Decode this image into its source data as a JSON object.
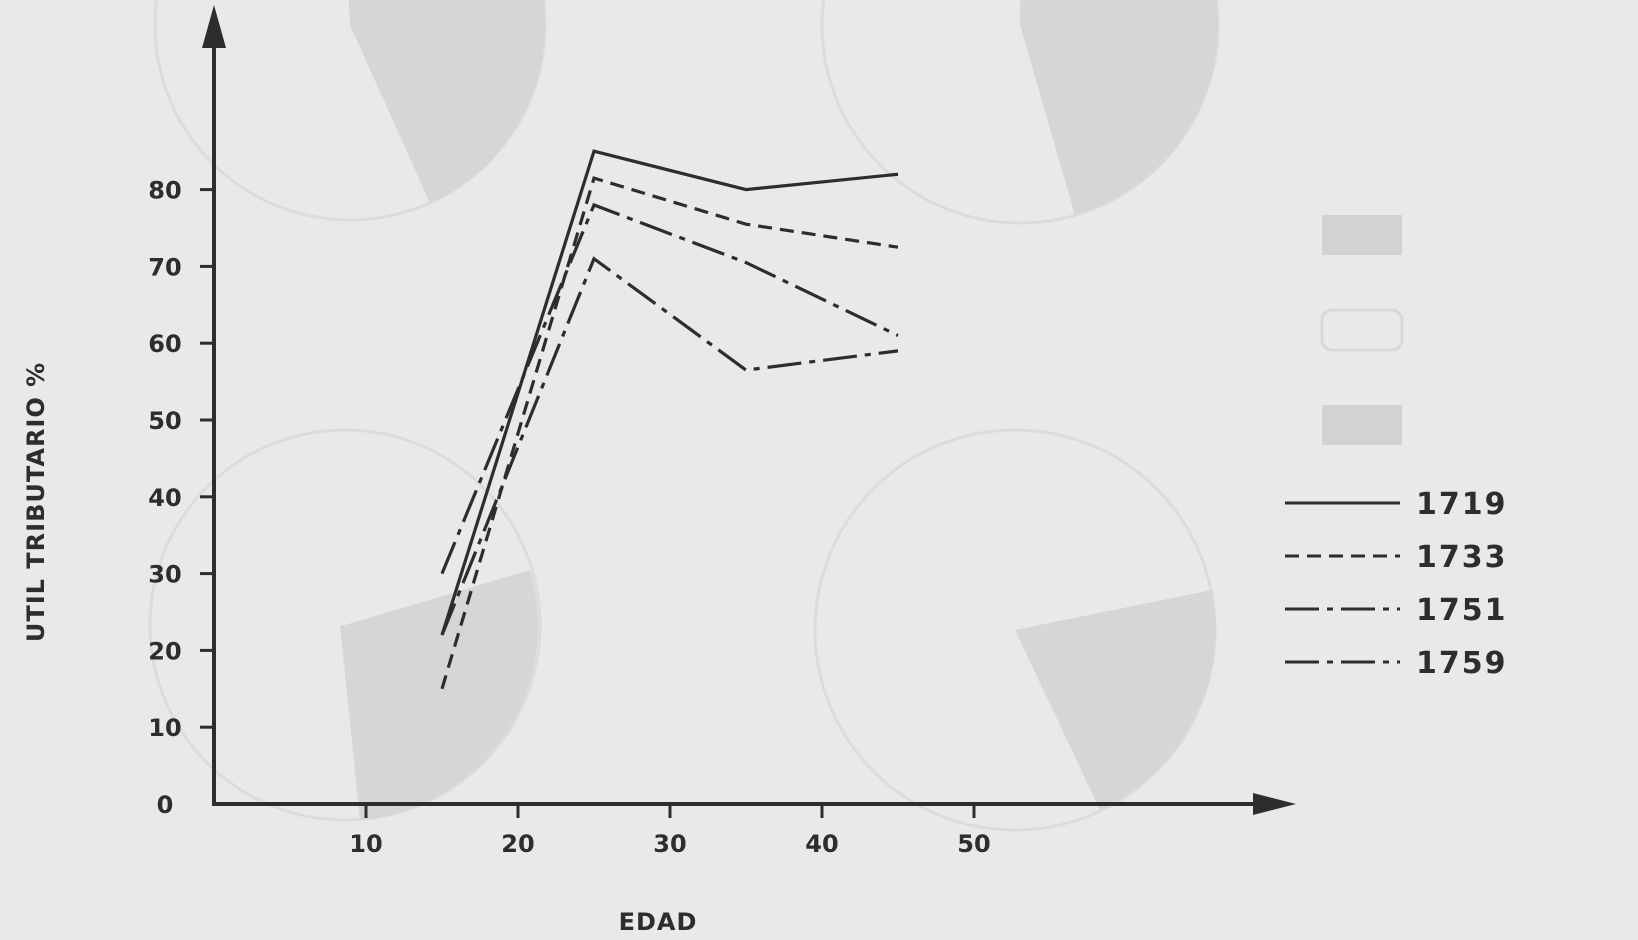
{
  "chart_data": {
    "type": "line",
    "xlabel": "EDAD",
    "ylabel": "UTIL TRIBUTARIO  %",
    "xlim": [
      0,
      60
    ],
    "ylim": [
      0,
      90
    ],
    "x_ticks": [
      10,
      20,
      30,
      40,
      50
    ],
    "y_ticks": [
      0,
      10,
      20,
      30,
      40,
      50,
      60,
      70,
      80
    ],
    "x_tick_labels": [
      "10",
      "20",
      "30",
      "40",
      "50"
    ],
    "y_tick_labels": [
      "0",
      "10",
      "20",
      "30",
      "40",
      "50",
      "60",
      "70",
      "80"
    ],
    "legend_position": "right",
    "x": [
      15,
      25,
      35,
      45
    ],
    "series": [
      {
        "name": "1719",
        "style": "solid",
        "values": [
          22,
          85,
          80,
          82
        ]
      },
      {
        "name": "1733",
        "style": "dashed",
        "values": [
          15,
          81.5,
          75.5,
          72.5
        ]
      },
      {
        "name": "1751",
        "style": "dashdot",
        "values": [
          30,
          78,
          70.5,
          61
        ]
      },
      {
        "name": "1759",
        "style": "dashdot",
        "values": [
          22,
          71,
          56.5,
          59
        ]
      }
    ],
    "colors": {
      "line": "#2d2d2d",
      "background": "#e9e9e9",
      "pie_fill": "#d6d6d6"
    }
  }
}
